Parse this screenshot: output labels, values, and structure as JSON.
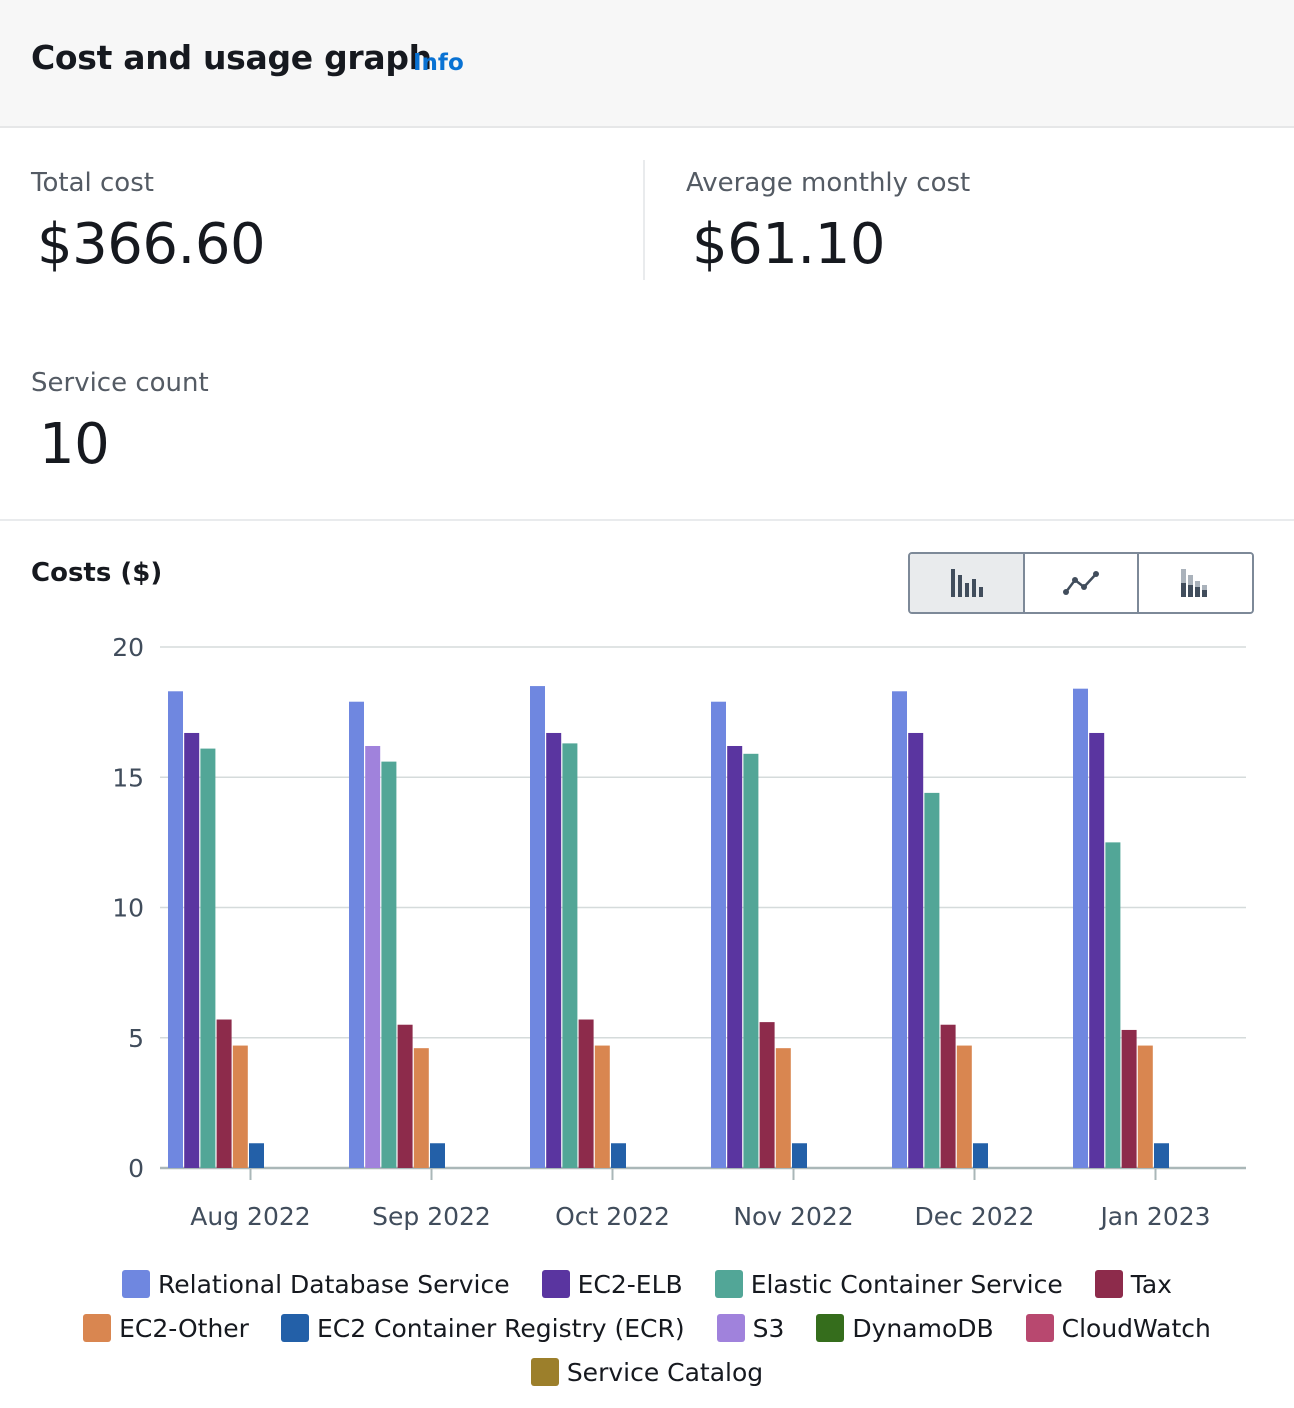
{
  "header": {
    "title": "Cost and usage graph",
    "info_link": "Info"
  },
  "metrics": {
    "total_cost": {
      "label": "Total cost",
      "value": "$366.60"
    },
    "average_monthly_cost": {
      "label": "Average monthly cost",
      "value": "$61.10"
    },
    "service_count": {
      "label": "Service count",
      "value": "10"
    }
  },
  "chart_toggle": {
    "options": [
      "bar-chart-icon",
      "line-chart-icon",
      "stacked-bar-chart-icon"
    ],
    "selected": "bar-chart-icon"
  },
  "chart_data": {
    "type": "bar",
    "title": "Costs ($)",
    "categories": [
      "Aug 2022",
      "Sep 2022",
      "Oct 2022",
      "Nov 2022",
      "Dec 2022",
      "Jan 2023"
    ],
    "ylim": [
      0,
      20
    ],
    "yticks": [
      0,
      5,
      10,
      15,
      20
    ],
    "grid": true,
    "legend_position": "bottom",
    "series": [
      {
        "name": "Relational Database Service",
        "color": "#6f87e0",
        "values": [
          18.3,
          17.9,
          18.5,
          17.9,
          18.3,
          18.4
        ]
      },
      {
        "name": "EC2-ELB",
        "color": "#5a35a0",
        "values": [
          16.7,
          null,
          16.7,
          16.2,
          16.7,
          16.7
        ]
      },
      {
        "name": "Elastic Container Service",
        "color": "#52a697",
        "values": [
          16.1,
          15.6,
          16.3,
          15.9,
          14.4,
          12.5
        ]
      },
      {
        "name": "Tax",
        "color": "#8d2b4b",
        "values": [
          5.7,
          5.5,
          5.7,
          5.6,
          5.5,
          5.3
        ]
      },
      {
        "name": "EC2-Other",
        "color": "#d98650",
        "values": [
          4.7,
          4.6,
          4.7,
          4.6,
          4.7,
          4.7
        ]
      },
      {
        "name": "EC2 Container Registry (ECR)",
        "color": "#2360a8",
        "values": [
          0.95,
          0.95,
          0.95,
          0.95,
          0.95,
          0.95
        ]
      },
      {
        "name": "S3",
        "color": "#a082dc",
        "values": [
          null,
          16.2,
          null,
          null,
          null,
          null
        ]
      },
      {
        "name": "DynamoDB",
        "color": "#356d1c",
        "values": [
          null,
          null,
          null,
          null,
          null,
          null
        ]
      },
      {
        "name": "CloudWatch",
        "color": "#b8486f",
        "values": [
          null,
          null,
          null,
          null,
          null,
          null
        ]
      },
      {
        "name": "Service Catalog",
        "color": "#9c7f2b",
        "values": [
          null,
          null,
          null,
          null,
          null,
          null
        ]
      }
    ]
  }
}
